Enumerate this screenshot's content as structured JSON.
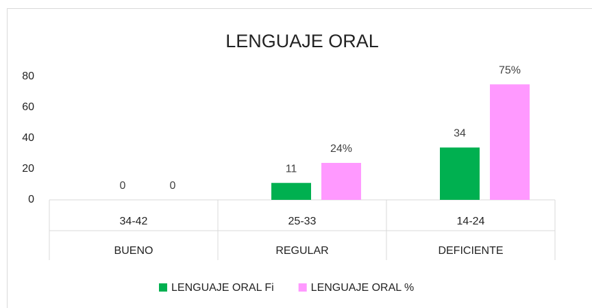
{
  "chart_data": {
    "type": "bar",
    "title": "LENGUAJE ORAL",
    "categories": [
      "34-42",
      "25-33",
      "14-24"
    ],
    "groups": [
      "BUENO",
      "REGULAR",
      "DEFICIENTE"
    ],
    "series": [
      {
        "name": "LENGUAJE ORAL Fi",
        "color": "#00b050",
        "values": [
          0,
          11,
          34
        ]
      },
      {
        "name": "LENGUAJE ORAL %",
        "color": "#ff99ff",
        "values": [
          0,
          24,
          75
        ],
        "value_labels": [
          "0",
          "24%",
          "75%"
        ]
      }
    ],
    "ylim": [
      0,
      80
    ],
    "yticks": [
      0,
      20,
      40,
      60,
      80
    ],
    "grid": false,
    "legend": "bottom"
  }
}
